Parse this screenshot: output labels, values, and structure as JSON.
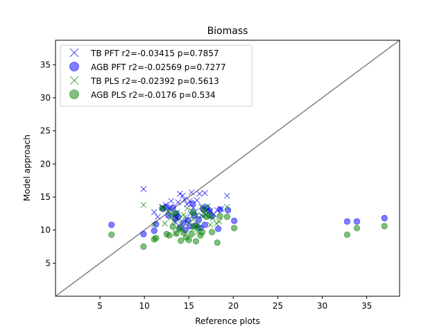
{
  "chart_data": {
    "type": "scatter",
    "title": "Biomass",
    "xlabel": "Reference plots",
    "ylabel": "Model approach",
    "xlim": [
      0,
      38.7
    ],
    "ylim": [
      0,
      38.7
    ],
    "xticks": [
      5,
      10,
      15,
      20,
      25,
      30,
      35
    ],
    "yticks": [
      5,
      10,
      15,
      20,
      25,
      30,
      35
    ],
    "grid": false,
    "legend_position": "top-left",
    "one_to_one_line": true,
    "one_to_one_color": "#808080",
    "series": [
      {
        "name": "TB PFT r2=-0.03415 p=0.7857",
        "marker": "x",
        "color": "#0000ff",
        "points": [
          [
            9.9,
            16.2
          ],
          [
            11.1,
            12.7
          ],
          [
            11.5,
            12.0
          ],
          [
            12.0,
            13.5
          ],
          [
            12.4,
            13.8
          ],
          [
            12.8,
            13.2
          ],
          [
            13.0,
            14.4
          ],
          [
            13.4,
            12.1
          ],
          [
            13.6,
            11.8
          ],
          [
            13.8,
            14.2
          ],
          [
            14.0,
            15.5
          ],
          [
            14.3,
            15.2
          ],
          [
            14.5,
            14.6
          ],
          [
            14.8,
            13.9
          ],
          [
            15.1,
            14.4
          ],
          [
            15.3,
            15.7
          ],
          [
            15.5,
            13.4
          ],
          [
            15.7,
            12.8
          ],
          [
            15.9,
            14.5
          ],
          [
            16.2,
            15.5
          ],
          [
            16.5,
            13.6
          ],
          [
            16.8,
            15.6
          ],
          [
            17.1,
            13.1
          ],
          [
            17.4,
            12.9
          ],
          [
            17.8,
            12.4
          ],
          [
            18.2,
            13.0
          ],
          [
            18.6,
            13.2
          ],
          [
            19.3,
            15.2
          ],
          [
            13.5,
            11.2
          ],
          [
            14.7,
            11.5
          ],
          [
            15.2,
            12.5
          ],
          [
            16.4,
            12.2
          ],
          [
            16.9,
            12.3
          ]
        ]
      },
      {
        "name": "AGB PFT r2=-0.02569 p=0.7277",
        "marker": "o",
        "color": "#0000ff",
        "points": [
          [
            6.3,
            10.8
          ],
          [
            9.9,
            9.4
          ],
          [
            11.1,
            9.9
          ],
          [
            11.3,
            10.9
          ],
          [
            12.1,
            13.2
          ],
          [
            12.5,
            13.5
          ],
          [
            12.7,
            12.2
          ],
          [
            13.2,
            13.4
          ],
          [
            13.5,
            11.8
          ],
          [
            13.6,
            12.5
          ],
          [
            13.8,
            12.0
          ],
          [
            14.0,
            10.4
          ],
          [
            14.4,
            11.1
          ],
          [
            14.6,
            10.0
          ],
          [
            14.9,
            11.5
          ],
          [
            15.1,
            10.6
          ],
          [
            15.4,
            14.0
          ],
          [
            15.6,
            12.2
          ],
          [
            15.8,
            10.7
          ],
          [
            16.1,
            11.6
          ],
          [
            16.3,
            10.3
          ],
          [
            16.6,
            13.2
          ],
          [
            16.8,
            10.8
          ],
          [
            17.0,
            13.4
          ],
          [
            17.3,
            12.9
          ],
          [
            17.6,
            12.1
          ],
          [
            18.3,
            10.2
          ],
          [
            18.5,
            13.1
          ],
          [
            19.4,
            13.0
          ],
          [
            20.1,
            11.4
          ],
          [
            32.8,
            11.3
          ],
          [
            33.9,
            11.3
          ],
          [
            37.0,
            11.8
          ]
        ]
      },
      {
        "name": "TB PLS r2=-0.02392 p=0.5613",
        "marker": "x",
        "color": "#008000",
        "points": [
          [
            9.9,
            13.8
          ],
          [
            11.1,
            10.8
          ],
          [
            12.0,
            13.4
          ],
          [
            12.3,
            11.0
          ],
          [
            12.7,
            12.9
          ],
          [
            13.0,
            11.9
          ],
          [
            13.3,
            11.3
          ],
          [
            13.5,
            9.5
          ],
          [
            13.7,
            12.7
          ],
          [
            13.9,
            11.7
          ],
          [
            14.1,
            10.9
          ],
          [
            14.4,
            12.3
          ],
          [
            14.6,
            12.0
          ],
          [
            14.8,
            13.3
          ],
          [
            15.0,
            11.1
          ],
          [
            15.3,
            12.9
          ],
          [
            15.5,
            11.6
          ],
          [
            15.7,
            10.6
          ],
          [
            15.9,
            12.2
          ],
          [
            16.1,
            10.9
          ],
          [
            16.4,
            13.5
          ],
          [
            16.6,
            12.1
          ],
          [
            16.8,
            12.5
          ],
          [
            17.1,
            13.6
          ],
          [
            17.4,
            10.8
          ],
          [
            17.7,
            11.8
          ],
          [
            18.1,
            11.0
          ],
          [
            18.4,
            11.3
          ],
          [
            19.3,
            13.5
          ],
          [
            12.9,
            12.4
          ],
          [
            14.2,
            10.2
          ],
          [
            15.4,
            10.1
          ],
          [
            16.0,
            9.7
          ]
        ]
      },
      {
        "name": "AGB PLS r2=-0.0176 p=0.534",
        "marker": "o",
        "color": "#008000",
        "points": [
          [
            6.3,
            9.3
          ],
          [
            9.9,
            7.5
          ],
          [
            11.1,
            8.6
          ],
          [
            11.3,
            8.8
          ],
          [
            12.0,
            13.3
          ],
          [
            12.5,
            9.4
          ],
          [
            12.8,
            9.2
          ],
          [
            13.2,
            10.5
          ],
          [
            13.4,
            12.5
          ],
          [
            13.6,
            9.5
          ],
          [
            13.9,
            10.2
          ],
          [
            14.1,
            8.4
          ],
          [
            14.4,
            9.6
          ],
          [
            14.7,
            8.9
          ],
          [
            15.0,
            8.5
          ],
          [
            15.3,
            9.4
          ],
          [
            15.5,
            12.6
          ],
          [
            15.8,
            8.3
          ],
          [
            16.0,
            10.3
          ],
          [
            16.3,
            9.2
          ],
          [
            16.5,
            9.7
          ],
          [
            16.7,
            13.0
          ],
          [
            17.0,
            12.0
          ],
          [
            17.3,
            12.2
          ],
          [
            17.6,
            9.7
          ],
          [
            18.2,
            8.1
          ],
          [
            18.5,
            12.1
          ],
          [
            19.3,
            12.0
          ],
          [
            20.1,
            10.3
          ],
          [
            32.8,
            9.3
          ],
          [
            33.9,
            10.3
          ],
          [
            37.0,
            10.6
          ],
          [
            15.6,
            10.6
          ]
        ]
      }
    ]
  }
}
